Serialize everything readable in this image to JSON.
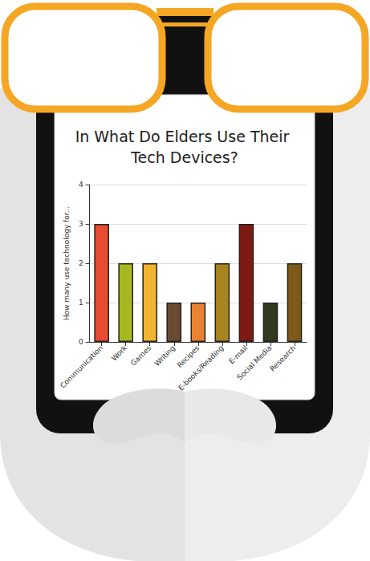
{
  "chart_data": {
    "type": "bar",
    "title": "In What Do Elders Use Their Tech Devices?",
    "y_label": "How many use technology for...",
    "categories": [
      "Communication",
      "Work",
      "Games",
      "Writing",
      "Recipes",
      "E-books/Reading",
      "E-mail",
      "Social Media",
      "Research"
    ],
    "values": [
      3,
      2,
      2,
      1,
      1,
      2,
      3,
      1,
      2
    ],
    "colors": [
      "#e84c30",
      "#a8b820",
      "#f2b531",
      "#6b4a32",
      "#ea8231",
      "#a8841f",
      "#7e1a14",
      "#2f3a20",
      "#7d5a19"
    ],
    "ylim": [
      0,
      4
    ],
    "yticks": [
      0,
      1,
      2,
      3,
      4
    ],
    "grid": true
  }
}
